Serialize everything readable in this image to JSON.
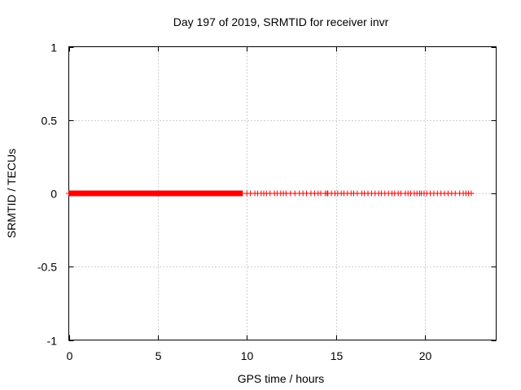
{
  "chart_data": {
    "type": "scatter",
    "title": "Day 197 of 2019, SRMTID for receiver invr",
    "xlabel": "GPS time / hours",
    "ylabel": "SRMTID / TECUs",
    "xlim": [
      0,
      24
    ],
    "ylim": [
      -1,
      1
    ],
    "x_ticks": [
      0,
      5,
      10,
      15,
      20
    ],
    "x_tick_labels": [
      "0",
      "5",
      "10",
      "15",
      "20"
    ],
    "y_ticks": [
      -1,
      -0.5,
      0,
      0.5,
      1
    ],
    "y_tick_labels": [
      "-1",
      "-0.5",
      "0",
      "0.5",
      "1"
    ],
    "grid": true,
    "marker": "plus",
    "series": [
      {
        "name": "SRMTID",
        "color": "#ff0000",
        "dense_segment": {
          "x_start": 0.0,
          "x_end": 9.75,
          "step": 0.025,
          "y": 0
        },
        "sparse_points": {
          "x": [
            10.0,
            10.2,
            10.45,
            10.6,
            10.8,
            10.95,
            11.1,
            11.3,
            11.55,
            11.7,
            11.9,
            12.05,
            12.2,
            12.45,
            12.7,
            12.95,
            13.15,
            13.35,
            13.6,
            13.8,
            14.0,
            14.15,
            14.4,
            14.5,
            14.55,
            14.75,
            14.95,
            15.1,
            15.3,
            15.45,
            15.65,
            15.85,
            16.0,
            16.2,
            16.45,
            16.6,
            16.8,
            17.0,
            17.2,
            17.4,
            17.55,
            17.75,
            17.95,
            18.15,
            18.3,
            18.5,
            18.65,
            18.9,
            19.05,
            19.2,
            19.4,
            19.55,
            19.7,
            19.8,
            19.95,
            20.1,
            20.3,
            20.5,
            20.7,
            20.9,
            21.1,
            21.3,
            21.5,
            21.7,
            21.95,
            22.15,
            22.3,
            22.45,
            22.6
          ],
          "y": 0
        }
      }
    ]
  }
}
